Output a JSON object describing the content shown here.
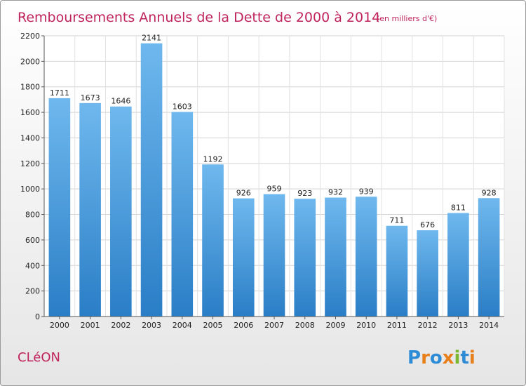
{
  "chart_data": {
    "type": "bar",
    "title": "Remboursements Annuels de la Dette de 2000 à 2014",
    "subtitle": "(en milliers d'€)",
    "categories": [
      "2000",
      "2001",
      "2002",
      "2003",
      "2004",
      "2005",
      "2006",
      "2007",
      "2008",
      "2009",
      "2010",
      "2011",
      "2012",
      "2013",
      "2014"
    ],
    "values": [
      1711,
      1673,
      1646,
      2141,
      1603,
      1192,
      926,
      959,
      923,
      932,
      939,
      711,
      676,
      811,
      928
    ],
    "ylim": [
      0,
      2200
    ],
    "yticks": [
      0,
      200,
      400,
      600,
      800,
      1000,
      1200,
      1400,
      1600,
      1800,
      2000,
      2200
    ],
    "grid": true,
    "bar_color_top": "#6fb8ee",
    "bar_color_bottom": "#2a7ec6"
  },
  "footer": {
    "city": "CLéON",
    "logo_letters": [
      {
        "ch": "P",
        "color": "#2e8bd6"
      },
      {
        "ch": "r",
        "color": "#e77f1b"
      },
      {
        "ch": "o",
        "color": "#2e8bd6"
      },
      {
        "ch": "x",
        "color": "#e77f1b"
      },
      {
        "ch": "i",
        "color": "#7cb82f"
      },
      {
        "ch": "t",
        "color": "#2e8bd6"
      },
      {
        "ch": "i",
        "color": "#e77f1b"
      }
    ]
  }
}
